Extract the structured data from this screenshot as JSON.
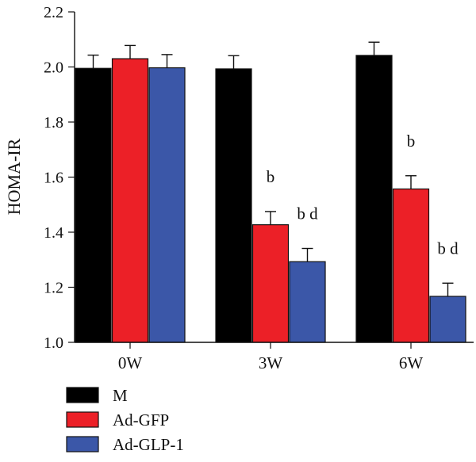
{
  "chart_data": {
    "type": "bar",
    "ylabel": "HOMA-IR",
    "ylim": [
      1.0,
      2.2
    ],
    "yticks": [
      1.0,
      1.2,
      1.4,
      1.6,
      1.8,
      2.0,
      2.2
    ],
    "ytick_labels": [
      "1.0",
      "1.2",
      "1.4",
      "1.6",
      "1.8",
      "2.0",
      "2.2"
    ],
    "categories": [
      "0W",
      "3W",
      "6W"
    ],
    "series": [
      {
        "name": "M",
        "color": "#000000",
        "values": [
          1.995,
          1.993,
          2.042
        ],
        "errors": [
          0.048,
          0.048,
          0.048
        ]
      },
      {
        "name": "Ad-GFP",
        "color": "#ec2027",
        "values": [
          2.03,
          1.427,
          1.557
        ],
        "errors": [
          0.048,
          0.048,
          0.048
        ]
      },
      {
        "name": "Ad-GLP-1",
        "color": "#3b57a8",
        "values": [
          1.997,
          1.293,
          1.167
        ],
        "errors": [
          0.048,
          0.048,
          0.048
        ]
      }
    ],
    "annotations": [
      {
        "category": "3W",
        "series": "Ad-GFP",
        "text": "b"
      },
      {
        "category": "3W",
        "series": "Ad-GLP-1",
        "text": "b d"
      },
      {
        "category": "6W",
        "series": "Ad-GFP",
        "text": "b"
      },
      {
        "category": "6W",
        "series": "Ad-GLP-1",
        "text": "b d"
      }
    ],
    "grid": false,
    "legend_position": "bottom-left"
  }
}
